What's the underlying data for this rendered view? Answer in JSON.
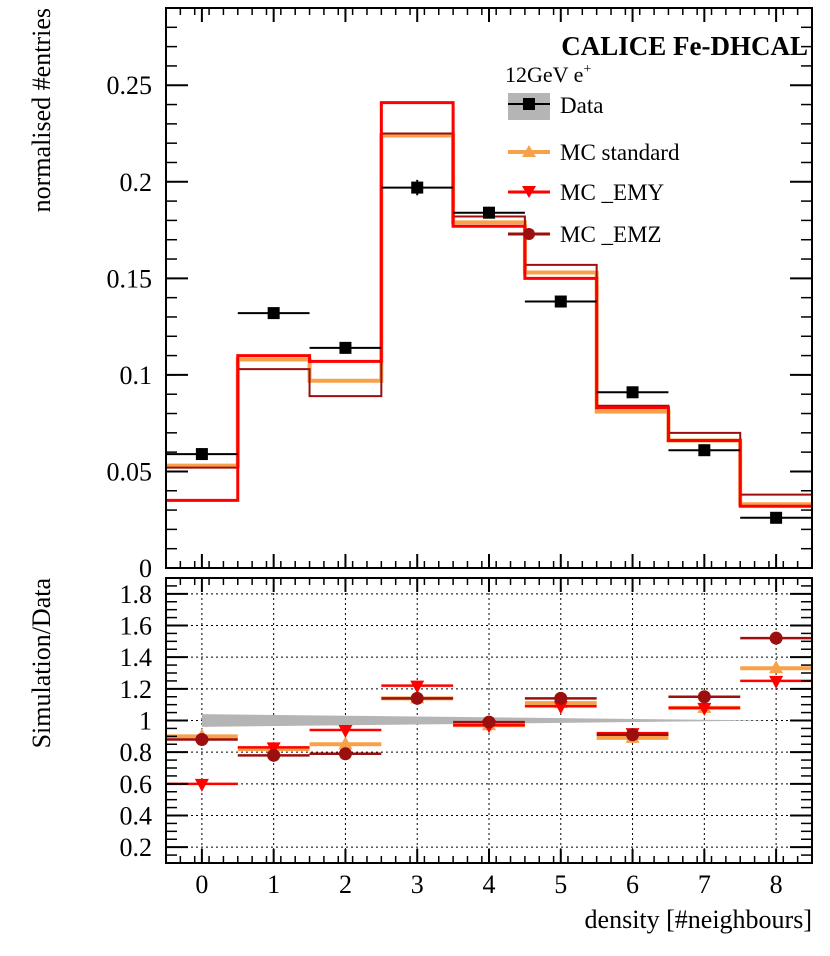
{
  "chart_data": [
    {
      "panel": "main",
      "type": "histogram",
      "title": "CALICE Fe-DHCAL",
      "subtitle": "12GeV e",
      "subtitle_sup": "+",
      "xlabel": "density [#neighbours]",
      "ylabel": "normalised #entries",
      "xlim": [
        -0.5,
        8.5
      ],
      "ylim": [
        0,
        0.29
      ],
      "x_ticks": [
        0,
        1,
        2,
        3,
        4,
        5,
        6,
        7,
        8
      ],
      "y_ticks": [
        0,
        0.05,
        0.1,
        0.15,
        0.2,
        0.25
      ],
      "y_tick_labels": [
        "0",
        "0.05",
        "0.1",
        "0.15",
        "0.2",
        "0.25"
      ],
      "legend": [
        {
          "label": "Data",
          "series": "data"
        },
        {
          "label": "MC standard",
          "series": "mc_standard"
        },
        {
          "label": "MC _EMY",
          "series": "mc_emy"
        },
        {
          "label": "MC _EMZ",
          "series": "mc_emz"
        }
      ],
      "series": [
        {
          "name": "MC standard",
          "key": "mc_standard",
          "color": "#f7a14b",
          "style": "step",
          "values": [
            0.053,
            0.108,
            0.097,
            0.224,
            0.179,
            0.153,
            0.081,
            0.066,
            0.033
          ]
        },
        {
          "name": "MC _EMZ",
          "key": "mc_emz",
          "color": "#9b0f0f",
          "style": "step",
          "values": [
            0.052,
            0.103,
            0.089,
            0.225,
            0.182,
            0.157,
            0.084,
            0.07,
            0.038
          ]
        },
        {
          "name": "MC _EMY",
          "key": "mc_emy",
          "color": "#ff0000",
          "style": "step",
          "values": [
            0.035,
            0.11,
            0.107,
            0.241,
            0.177,
            0.15,
            0.083,
            0.066,
            0.032
          ]
        },
        {
          "name": "Data",
          "key": "data",
          "color": "#000000",
          "style": "points",
          "values": [
            0.059,
            0.132,
            0.114,
            0.197,
            0.184,
            0.138,
            0.091,
            0.061,
            0.026
          ],
          "errors": [
            0.002,
            0.002,
            0.002,
            0.004,
            0.003,
            0.002,
            0.002,
            0.002,
            0.002
          ]
        }
      ]
    },
    {
      "panel": "ratio",
      "type": "ratio",
      "xlabel": "density [#neighbours]",
      "ylabel": "Simulation/Data",
      "xlim": [
        -0.5,
        8.5
      ],
      "ylim": [
        0.1,
        1.9
      ],
      "x_ticks": [
        0,
        1,
        2,
        3,
        4,
        5,
        6,
        7,
        8
      ],
      "x_tick_labels": [
        "0",
        "1",
        "2",
        "3",
        "4",
        "5",
        "6",
        "7",
        "8"
      ],
      "y_ticks": [
        0.2,
        0.4,
        0.6,
        0.8,
        1.0,
        1.2,
        1.4,
        1.6,
        1.8
      ],
      "y_tick_labels": [
        "0.2",
        "0.4",
        "0.6",
        "0.8",
        "1",
        "1.2",
        "1.4",
        "1.6",
        "1.8"
      ],
      "grid": true,
      "data_band": {
        "center": 1.0,
        "half_width_start": 0.04,
        "half_width_end": 0.0,
        "x_range": [
          0,
          8
        ],
        "color": "#b5b5b5"
      },
      "series": [
        {
          "name": "MC standard",
          "key": "mc_standard",
          "color": "#f7a14b",
          "marker": "triangle-up",
          "values": [
            0.9,
            0.82,
            0.85,
            1.14,
            0.97,
            1.11,
            0.89,
            1.08,
            1.33
          ]
        },
        {
          "name": "MC _EMY",
          "key": "mc_emy",
          "color": "#ff0000",
          "marker": "triangle-down",
          "values": [
            0.6,
            0.83,
            0.94,
            1.22,
            0.97,
            1.09,
            0.92,
            1.08,
            1.25
          ]
        },
        {
          "name": "MC _EMZ",
          "key": "mc_emz",
          "color": "#9b0f0f",
          "marker": "circle",
          "values": [
            0.88,
            0.78,
            0.79,
            1.14,
            0.99,
            1.14,
            0.91,
            1.15,
            1.52
          ]
        }
      ]
    }
  ]
}
